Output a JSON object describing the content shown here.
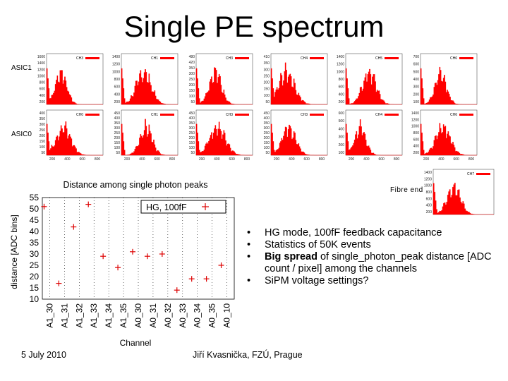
{
  "slide": {
    "title": "Single PE spectrum",
    "row_label_top": "ASIC1",
    "row_label_bottom": "ASIC0",
    "fibre_label": "Fibre end",
    "footer_date": "5 July 2010",
    "footer_author": "Jiří Kvasnička, FZÚ, Prague"
  },
  "bullets": [
    {
      "pre": "",
      "bold": "",
      "post": "HG mode, 100fF feedback capacitance"
    },
    {
      "pre": "",
      "bold": "",
      "post": "Statistics of 50K events"
    },
    {
      "pre": "",
      "bold": "Big spread",
      "post": " of single_photon_peak distance [ADC count / pixel] among the channels"
    },
    {
      "pre": "",
      "bold": "",
      "post": "SiPM voltage settings?"
    }
  ],
  "colors": {
    "histogram": "#ff0000",
    "marker": "#dd0000",
    "grid": "#000000"
  },
  "chart_data": {
    "type": "scatter",
    "title": "Distance among single photon peaks",
    "xlabel": "Channel",
    "ylabel": "distance [ADC bins]",
    "ylim": [
      10,
      55
    ],
    "yticks": [
      10,
      15,
      20,
      25,
      30,
      35,
      40,
      45,
      50,
      55
    ],
    "legend": "HG, 100fF",
    "legend_position": "top-right",
    "categories": [
      "A1_30",
      "A1_31",
      "A1_32",
      "A1_33",
      "A1_34",
      "A1_35",
      "A0_30",
      "A0_31",
      "A0_32",
      "A0_33",
      "A0_34",
      "A0_35",
      "A0_10"
    ],
    "series": [
      {
        "name": "HG, 100fF",
        "values": [
          51,
          17,
          42,
          52,
          29,
          24,
          31,
          29,
          30,
          14,
          19,
          19,
          25
        ]
      }
    ]
  },
  "mini_histograms": [
    {
      "row": "ASIC1",
      "label": "CH3",
      "yticks": [
        "1600",
        "1400",
        "1200",
        "1000",
        "800",
        "600",
        "400",
        "200"
      ]
    },
    {
      "row": "ASIC1",
      "label": "CH1",
      "yticks": [
        "1400",
        "1200",
        "1000",
        "800",
        "600",
        "400",
        "200"
      ]
    },
    {
      "row": "ASIC1",
      "label": "CH3",
      "yticks": [
        "480",
        "420",
        "350",
        "300",
        "250",
        "200",
        "150",
        "100",
        "50"
      ]
    },
    {
      "row": "ASIC1",
      "label": "CH4",
      "yticks": [
        "410",
        "350",
        "300",
        "250",
        "200",
        "150",
        "100",
        "50"
      ]
    },
    {
      "row": "ASIC1",
      "label": "CH5",
      "yticks": [
        "1400",
        "1200",
        "1000",
        "800",
        "600",
        "400",
        "200"
      ]
    },
    {
      "row": "ASIC1",
      "label": "CH6",
      "yticks": [
        "700",
        "600",
        "500",
        "400",
        "300",
        "200",
        "100"
      ]
    },
    {
      "row": "ASIC0",
      "label": "CH0",
      "yticks": [
        "400",
        "350",
        "300",
        "250",
        "200",
        "150",
        "100",
        "50"
      ],
      "xticks": [
        "200",
        "400",
        "600",
        "800"
      ]
    },
    {
      "row": "ASIC0",
      "label": "CH1",
      "yticks": [
        "450",
        "400",
        "350",
        "300",
        "250",
        "200",
        "150",
        "100",
        "50"
      ],
      "xticks": [
        "200",
        "400",
        "600",
        "800"
      ]
    },
    {
      "row": "ASIC0",
      "label": "CH3",
      "yticks": [
        "450",
        "400",
        "350",
        "300",
        "250",
        "200",
        "150",
        "100",
        "50"
      ],
      "xticks": [
        "200",
        "400",
        "600",
        "800"
      ]
    },
    {
      "row": "ASIC0",
      "label": "CH3",
      "yticks": [
        "450",
        "400",
        "350",
        "300",
        "250",
        "200",
        "150",
        "100",
        "50"
      ],
      "xticks": [
        "200",
        "400",
        "600",
        "800"
      ]
    },
    {
      "row": "ASIC0",
      "label": "CH4",
      "yticks": [
        "600",
        "500",
        "400",
        "300",
        "200",
        "100"
      ],
      "xticks": [
        "200",
        "400",
        "600",
        "800"
      ]
    },
    {
      "row": "ASIC0",
      "label": "CH6",
      "yticks": [
        "1400",
        "1200",
        "1000",
        "800",
        "600",
        "400",
        "200"
      ],
      "xticks": [
        "200",
        "400",
        "600",
        "800"
      ]
    },
    {
      "row": "Fibre end",
      "label": "CH7",
      "yticks": [
        "1400",
        "1200",
        "1000",
        "800",
        "600",
        "400",
        "200"
      ]
    }
  ]
}
